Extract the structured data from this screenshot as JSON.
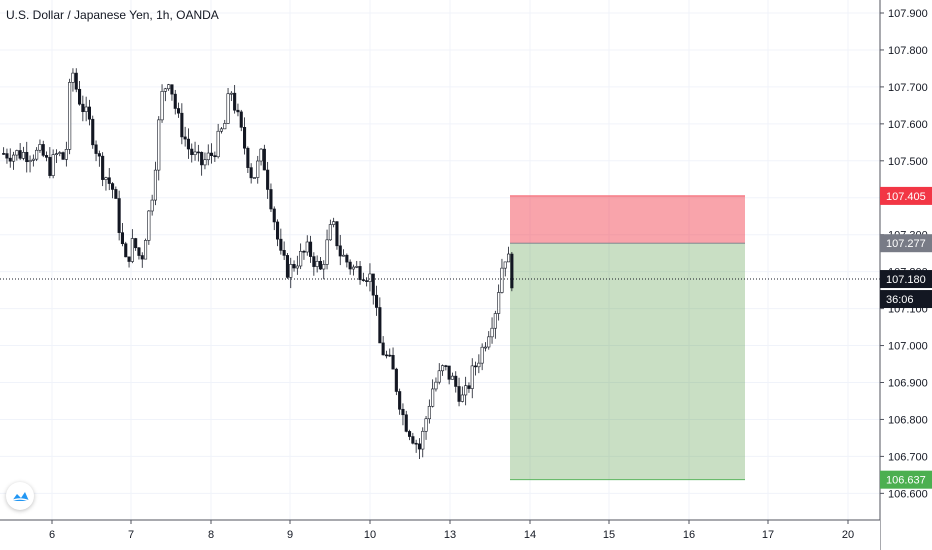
{
  "header": {
    "title": "U.S. Dollar / Japanese Yen, 1h, OANDA"
  },
  "logo": {
    "icon": "tradingview-cloud-icon"
  },
  "chart_data": {
    "type": "candlestick",
    "x_ticks": [
      "6",
      "7",
      "8",
      "9",
      "10",
      "13",
      "14",
      "15",
      "16",
      "17",
      "20"
    ],
    "y_ticks": [
      "107.900",
      "107.800",
      "107.700",
      "107.600",
      "107.500",
      "107.400",
      "107.300",
      "107.200",
      "107.100",
      "107.000",
      "106.900",
      "106.800",
      "106.700",
      "106.600"
    ],
    "ylim": [
      106.58,
      107.93
    ],
    "current_price": "107.180",
    "countdown": "36:06",
    "position": {
      "type": "short",
      "stop_loss": "107.405",
      "entry": "107.277",
      "take_profit": "106.637",
      "stop_color": "#f23645",
      "entry_color": "#787b86",
      "target_color": "#4caf50",
      "current_color": "#131722"
    },
    "close_path": [
      [
        5.85,
        107.52
      ],
      [
        5.95,
        107.48
      ],
      [
        6.05,
        107.52
      ],
      [
        6.15,
        107.5
      ],
      [
        6.22,
        107.76
      ],
      [
        6.3,
        107.68
      ],
      [
        6.45,
        107.6
      ],
      [
        6.6,
        107.48
      ],
      [
        6.75,
        107.42
      ],
      [
        6.9,
        107.22
      ],
      [
        7.0,
        107.28
      ],
      [
        7.1,
        107.23
      ],
      [
        7.25,
        107.43
      ],
      [
        7.35,
        107.67
      ],
      [
        7.45,
        107.73
      ],
      [
        7.55,
        107.62
      ],
      [
        7.7,
        107.53
      ],
      [
        7.85,
        107.49
      ],
      [
        8.0,
        107.52
      ],
      [
        8.15,
        107.6
      ],
      [
        8.22,
        107.7
      ],
      [
        8.35,
        107.58
      ],
      [
        8.5,
        107.45
      ],
      [
        8.62,
        107.52
      ],
      [
        8.75,
        107.37
      ],
      [
        8.85,
        107.24
      ],
      [
        8.95,
        107.2
      ],
      [
        9.05,
        107.23
      ],
      [
        9.2,
        107.26
      ],
      [
        9.35,
        107.2
      ],
      [
        9.5,
        107.33
      ],
      [
        9.6,
        107.25
      ],
      [
        9.75,
        107.21
      ],
      [
        9.9,
        107.2
      ],
      [
        10.0,
        107.18
      ],
      [
        10.1,
        107.0
      ],
      [
        10.25,
        106.94
      ],
      [
        10.4,
        106.8
      ],
      [
        10.5,
        106.76
      ],
      [
        10.6,
        106.72
      ],
      [
        10.75,
        106.88
      ],
      [
        10.9,
        106.94
      ],
      [
        11.0,
        106.91
      ],
      [
        11.15,
        106.85
      ],
      [
        11.25,
        106.92
      ],
      [
        11.4,
        107.0
      ],
      [
        11.55,
        107.1
      ],
      [
        11.65,
        107.24
      ],
      [
        11.7,
        107.25
      ],
      [
        11.75,
        107.18
      ]
    ]
  }
}
